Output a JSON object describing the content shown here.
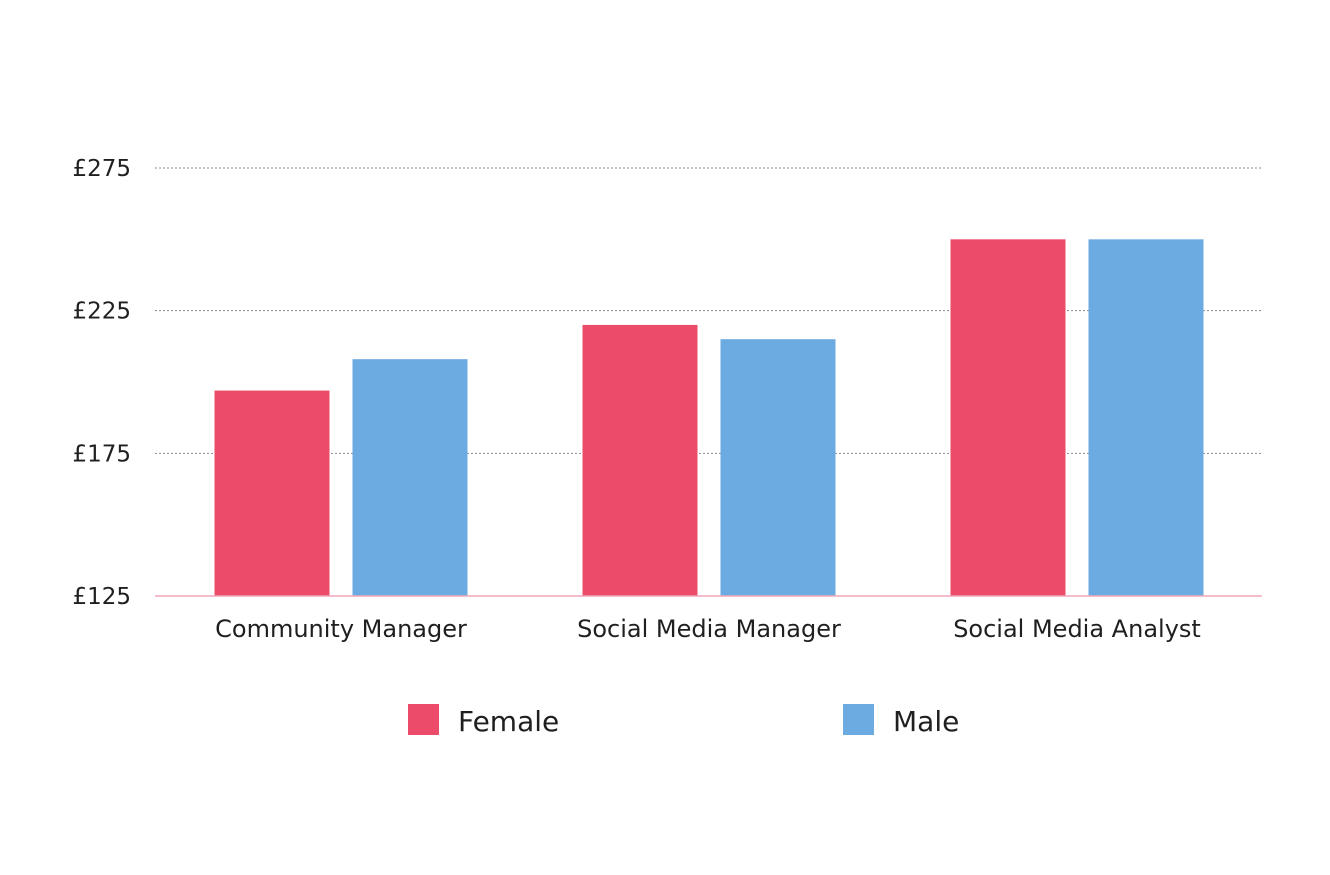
{
  "chart_data": {
    "type": "bar",
    "categories": [
      "Community Manager",
      "Social Media Manager",
      "Social Media Analyst"
    ],
    "series": [
      {
        "name": "Female",
        "color": "#ec4b69",
        "values": [
          197,
          220,
          250
        ]
      },
      {
        "name": "Male",
        "color": "#6caae2",
        "values": [
          208,
          215,
          250
        ]
      }
    ],
    "y_ticks": [
      125,
      175,
      225,
      275
    ],
    "y_tick_labels": [
      "£125",
      "£175",
      "£225",
      "£275"
    ],
    "ylim": [
      125,
      275
    ],
    "grid": true,
    "legend_position": "bottom-center",
    "colors": {
      "grid": "#888888",
      "baseline": "#f2a7b7",
      "text": "#1f1f1f"
    }
  }
}
